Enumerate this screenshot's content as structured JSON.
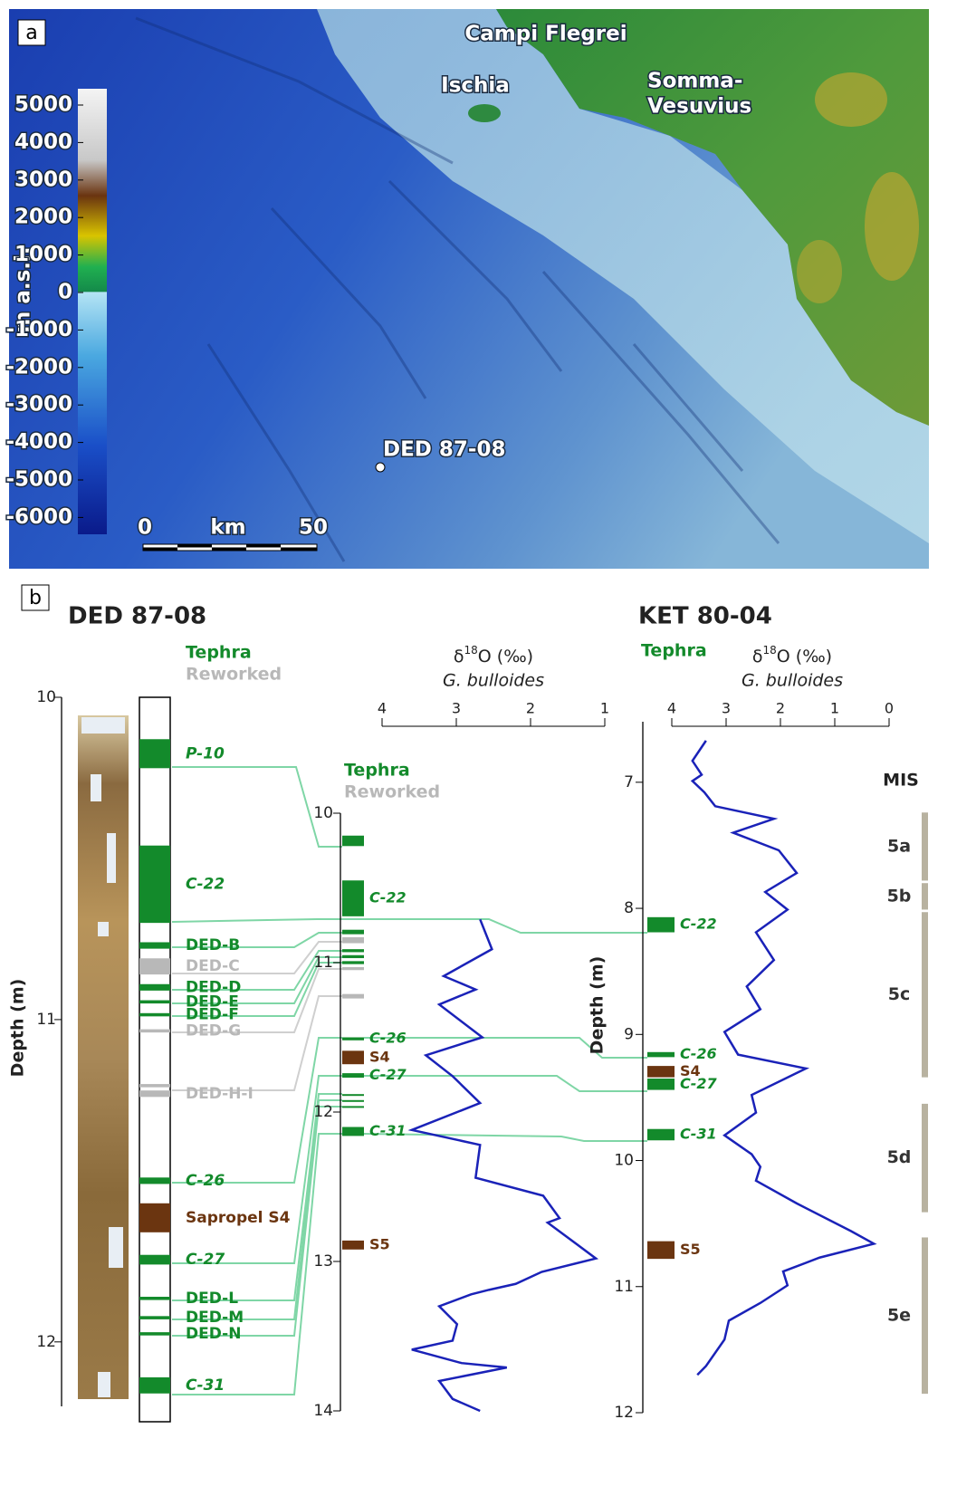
{
  "panel_a": {
    "label": "a",
    "places": [
      "Campi Flegrei",
      "Ischia",
      "Somma-",
      "Vesuvius"
    ],
    "site": "DED 87-08",
    "colorbar": {
      "title": "m a.s.l.",
      "ticks": [
        5000,
        4000,
        3000,
        2000,
        1000,
        0,
        -1000,
        -2000,
        -3000,
        -4000,
        -5000,
        -6000
      ]
    },
    "scale_bar": {
      "start": "0",
      "unit": "km",
      "end": "50"
    }
  },
  "panel_b": {
    "label": "b",
    "cores": [
      {
        "title": "DED 87-08",
        "legend": [
          {
            "name": "Tephra",
            "color": "#138a2b"
          },
          {
            "name": "Reworked",
            "color": "#b8b8b8"
          }
        ],
        "depth_label": "Depth (m)",
        "depth_lim": [
          10,
          12.2
        ],
        "depth_ticks": [
          10,
          11,
          12
        ],
        "layers": [
          {
            "label": "P-10",
            "top": 10.13,
            "base": 10.22,
            "color": "#138a2b",
            "italic": true
          },
          {
            "label": "C-22",
            "top": 10.46,
            "base": 10.7,
            "color": "#138a2b",
            "italic": true
          },
          {
            "label": "DED-B",
            "top": 10.76,
            "base": 10.78,
            "color": "#138a2b"
          },
          {
            "label": "DED-C",
            "top": 10.81,
            "base": 10.86,
            "color": "#b8b8b8"
          },
          {
            "label": "DED-D",
            "top": 10.89,
            "base": 10.91,
            "color": "#138a2b"
          },
          {
            "label": "DED-E",
            "top": 10.94,
            "base": 10.95,
            "color": "#138a2b"
          },
          {
            "label": "DED-F",
            "top": 10.98,
            "base": 10.99,
            "color": "#138a2b"
          },
          {
            "label": "DED-G",
            "top": 11.03,
            "base": 11.04,
            "color": "#b8b8b8"
          },
          {
            "top": 11.2,
            "base": 11.21,
            "color": "#b8b8b8"
          },
          {
            "label": "DED-H-I",
            "top": 11.22,
            "base": 11.24,
            "color": "#b8b8b8"
          },
          {
            "label": "C-26",
            "top": 11.49,
            "base": 11.51,
            "color": "#138a2b",
            "italic": true
          },
          {
            "label": "Sapropel S4",
            "top": 11.57,
            "base": 11.66,
            "color": "#6b3510"
          },
          {
            "label": "C-27",
            "top": 11.73,
            "base": 11.76,
            "color": "#138a2b",
            "italic": true
          },
          {
            "label": "DED-L",
            "top": 11.86,
            "base": 11.87,
            "color": "#138a2b"
          },
          {
            "label": "DED-M",
            "top": 11.92,
            "base": 11.93,
            "color": "#138a2b"
          },
          {
            "label": "DED-N",
            "top": 11.97,
            "base": 11.98,
            "color": "#138a2b"
          },
          {
            "label": "C-31",
            "top": 12.11,
            "base": 12.16,
            "color": "#138a2b",
            "italic": true
          }
        ],
        "scale2": {
          "legend": [
            {
              "name": "Tephra",
              "color": "#138a2b"
            },
            {
              "name": "Reworked",
              "color": "#b8b8b8"
            }
          ],
          "lim": [
            10,
            14
          ],
          "ticks": [
            10,
            11,
            12,
            13,
            14
          ],
          "layers": [
            {
              "top": 10.15,
              "base": 10.22,
              "color": "#138a2b"
            },
            {
              "label": "C-22",
              "top": 10.45,
              "base": 10.69,
              "color": "#138a2b",
              "italic": true
            },
            {
              "top": 10.78,
              "base": 10.81,
              "color": "#138a2b"
            },
            {
              "top": 10.83,
              "base": 10.87,
              "color": "#b8b8b8"
            },
            {
              "top": 10.91,
              "base": 10.93,
              "color": "#138a2b"
            },
            {
              "top": 10.95,
              "base": 10.97,
              "color": "#138a2b"
            },
            {
              "top": 10.99,
              "base": 11.01,
              "color": "#138a2b"
            },
            {
              "top": 11.03,
              "base": 11.05,
              "color": "#b8b8b8"
            },
            {
              "top": 11.21,
              "base": 11.24,
              "color": "#b8b8b8"
            },
            {
              "label": "C-26",
              "top": 11.5,
              "base": 11.52,
              "color": "#138a2b",
              "italic": true
            },
            {
              "label": "S4",
              "top": 11.59,
              "base": 11.68,
              "color": "#6b3510"
            },
            {
              "label": "C-27",
              "top": 11.74,
              "base": 11.77,
              "color": "#138a2b",
              "italic": true
            },
            {
              "top": 11.88,
              "base": 11.89,
              "color": "#138a2b"
            },
            {
              "top": 11.92,
              "base": 11.93,
              "color": "#138a2b"
            },
            {
              "top": 11.96,
              "base": 11.97,
              "color": "#138a2b"
            },
            {
              "label": "C-31",
              "top": 12.1,
              "base": 12.16,
              "color": "#138a2b",
              "italic": true
            },
            {
              "label": "S5",
              "top": 12.86,
              "base": 12.92,
              "color": "#6b3510"
            }
          ]
        },
        "isotope": {
          "label": [
            "δ",
            "18",
            "O (‰)"
          ],
          "species": "G. bulloides",
          "xlim": [
            4,
            1
          ],
          "xticks": [
            4,
            3,
            2,
            1
          ],
          "color": "#1a22b8",
          "depth": [
            10.71,
            10.91,
            11.09,
            11.18,
            11.28,
            11.5,
            11.62,
            11.76,
            11.94,
            12.12,
            12.22,
            12.44,
            12.56,
            12.71,
            12.74,
            12.98,
            13.07,
            13.15,
            13.19,
            13.22,
            13.3,
            13.42,
            13.53,
            13.59,
            13.68,
            13.71,
            13.8,
            13.92,
            14.0
          ],
          "values": [
            2.68,
            2.52,
            3.17,
            2.74,
            3.23,
            2.65,
            3.41,
            3.05,
            2.68,
            3.6,
            2.68,
            2.74,
            1.83,
            1.61,
            1.77,
            1.12,
            1.85,
            2.2,
            2.56,
            2.8,
            3.23,
            2.99,
            3.05,
            3.6,
            2.93,
            2.32,
            3.23,
            3.05,
            2.68
          ]
        }
      },
      {
        "title": "KET 80-04",
        "legend": [
          {
            "name": "Tephra",
            "color": "#138a2b"
          }
        ],
        "depth_label": "Depth (m)",
        "depth_lim": [
          6.52,
          12
        ],
        "depth_ticks": [
          7,
          8,
          9,
          10,
          11,
          12
        ],
        "layers": [
          {
            "label": "C-22",
            "top": 8.07,
            "base": 8.19,
            "color": "#138a2b",
            "italic": true
          },
          {
            "label": "C-26",
            "top": 9.14,
            "base": 9.18,
            "color": "#138a2b",
            "italic": true
          },
          {
            "label": "S4",
            "top": 9.25,
            "base": 9.34,
            "color": "#6b3510"
          },
          {
            "label": "C-27",
            "top": 9.35,
            "base": 9.44,
            "color": "#138a2b",
            "italic": true
          },
          {
            "label": "C-31",
            "top": 9.75,
            "base": 9.84,
            "color": "#138a2b",
            "italic": true
          },
          {
            "label": "S5",
            "top": 10.64,
            "base": 10.78,
            "color": "#6b3510"
          }
        ],
        "isotope": {
          "label": [
            "δ",
            "18",
            "O (‰)"
          ],
          "species": "G. bulloides",
          "xlim": [
            4,
            0
          ],
          "xticks": [
            4,
            3,
            2,
            1,
            0
          ],
          "color": "#1a22b8",
          "depth": [
            6.67,
            6.83,
            6.94,
            6.99,
            7.08,
            7.19,
            7.29,
            7.4,
            7.54,
            7.72,
            7.87,
            8.01,
            8.19,
            8.41,
            8.62,
            8.8,
            8.98,
            9.16,
            9.27,
            9.48,
            9.62,
            9.8,
            9.95,
            10.05,
            10.16,
            10.34,
            10.56,
            10.66,
            10.77,
            10.88,
            10.99,
            11.13,
            11.27,
            11.42,
            11.63,
            11.7
          ],
          "values": [
            3.37,
            3.62,
            3.45,
            3.62,
            3.4,
            3.2,
            2.12,
            2.87,
            2.03,
            1.7,
            2.28,
            1.87,
            2.45,
            2.12,
            2.62,
            2.37,
            3.03,
            2.78,
            1.53,
            2.53,
            2.45,
            3.03,
            2.53,
            2.37,
            2.45,
            1.7,
            0.7,
            0.28,
            1.28,
            1.95,
            1.87,
            2.37,
            2.95,
            3.03,
            3.37,
            3.53
          ]
        },
        "mis": {
          "title": "MIS",
          "color": "#b8b2a0",
          "stages": [
            {
              "label": "5a",
              "top": 7.24,
              "base": 7.78
            },
            {
              "label": "5b",
              "top": 7.8,
              "base": 8.01
            },
            {
              "label": "5c",
              "top": 8.03,
              "base": 9.34
            },
            {
              "label": "5d",
              "top": 9.55,
              "base": 10.41
            },
            {
              "label": "5e",
              "top": 10.61,
              "base": 11.85
            }
          ]
        }
      }
    ]
  }
}
